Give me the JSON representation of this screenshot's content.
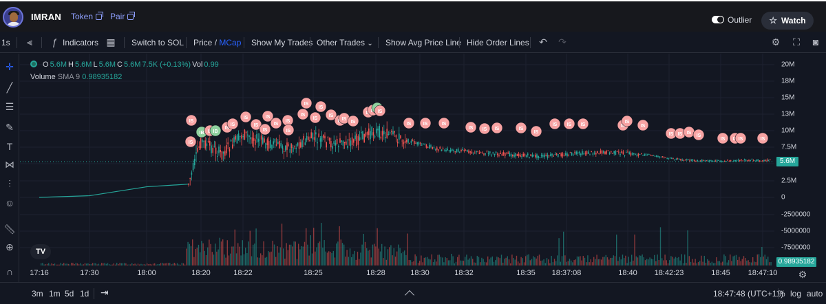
{
  "header": {
    "title": "IMRAN",
    "token_label": "Token",
    "pair_label": "Pair",
    "outlier_label": "Outlier",
    "watch_label": "Watch"
  },
  "toolbar": {
    "interval": "1s",
    "indicators_label": "Indicators",
    "switch_label": "Switch to SOL",
    "price_label": "Price",
    "slash": "/",
    "mcap_label": "MCap",
    "my_trades_label": "Show My Trades",
    "other_trades_label": "Other Trades",
    "avg_price_label": "Show Avg Price Line",
    "hide_orders_label": "Hide Order Lines"
  },
  "legend": {
    "o_key": "O",
    "o_val": "5.6M",
    "h_key": "H",
    "h_val": "5.6M",
    "l_key": "L",
    "l_val": "5.6M",
    "c_key": "C",
    "c_val": "5.6M",
    "change": "7.5K (+0.13%)",
    "vol_key": "Vol",
    "vol_val": "0.99",
    "volume_label": "Volume",
    "sma_label": "SMA 9",
    "sma_val": "0.98935182"
  },
  "y_axis": {
    "ticks": [
      "20M",
      "18M",
      "15M",
      "13M",
      "10M",
      "7.5M",
      "5M",
      "2.5M",
      "0",
      "-2500000",
      "-5000000",
      "-7500000"
    ],
    "last_price": "5.6M",
    "volume_value": "0.98935182"
  },
  "time_axis": {
    "labels": [
      "17:16",
      "17:30",
      "18:00",
      "18:20",
      "18:22",
      "18:25",
      "18:28",
      "18:30",
      "18:32",
      "18:35",
      "18:37:08",
      "18:40",
      "18:42:23",
      "18:45",
      "18:47:10"
    ]
  },
  "bottom": {
    "ranges": [
      "3m",
      "1m",
      "5d",
      "1d"
    ],
    "clock": "18:47:48 (UTC+11)",
    "percent_label": "%",
    "log_label": "log",
    "auto_label": "auto"
  },
  "logo_text": "TV",
  "marker_text": "IS",
  "marker_text_buy": "IB",
  "colors": {
    "up": "#26a69a",
    "down": "#ef5350",
    "marker_sell": "#f7a3a3",
    "marker_buy": "#8fd19e",
    "accent": "#2962ff"
  },
  "chart_data": {
    "type": "candlestick",
    "title": "",
    "y_unit": "Market cap",
    "ylim": [
      0,
      20000000
    ],
    "x_labels": [
      "17:16",
      "17:30",
      "18:00",
      "18:20",
      "18:22",
      "18:25",
      "18:28",
      "18:30",
      "18:32",
      "18:35",
      "18:37:08",
      "18:40",
      "18:42:23",
      "18:45",
      "18:47:10"
    ],
    "series": [
      {
        "x": [
          "17:16",
          "17:30",
          "18:00",
          "18:19",
          "18:20",
          "18:21",
          "18:22",
          "18:23",
          "18:24",
          "18:25",
          "18:26",
          "18:27",
          "18:28",
          "18:29",
          "18:30",
          "18:31",
          "18:32",
          "18:33",
          "18:34",
          "18:35",
          "18:36",
          "18:37:08",
          "18:38",
          "18:39",
          "18:40",
          "18:41",
          "18:42:23",
          "18:43",
          "18:44",
          "18:45",
          "18:46",
          "18:47:10"
        ],
        "values": [
          0,
          250000,
          1600000,
          2000000,
          8500000,
          6500000,
          9500000,
          8200000,
          7500000,
          9000000,
          8000000,
          8500000,
          10000000,
          9000000,
          8000000,
          7200000,
          7000000,
          6700000,
          6500000,
          6300000,
          6200000,
          6500000,
          6700000,
          6800000,
          6600000,
          6400000,
          5900000,
          5600000,
          5500000,
          5500000,
          5550000,
          5600000
        ]
      }
    ],
    "volume_sma": 0.98935182,
    "grid": true,
    "legend": "top-left"
  }
}
